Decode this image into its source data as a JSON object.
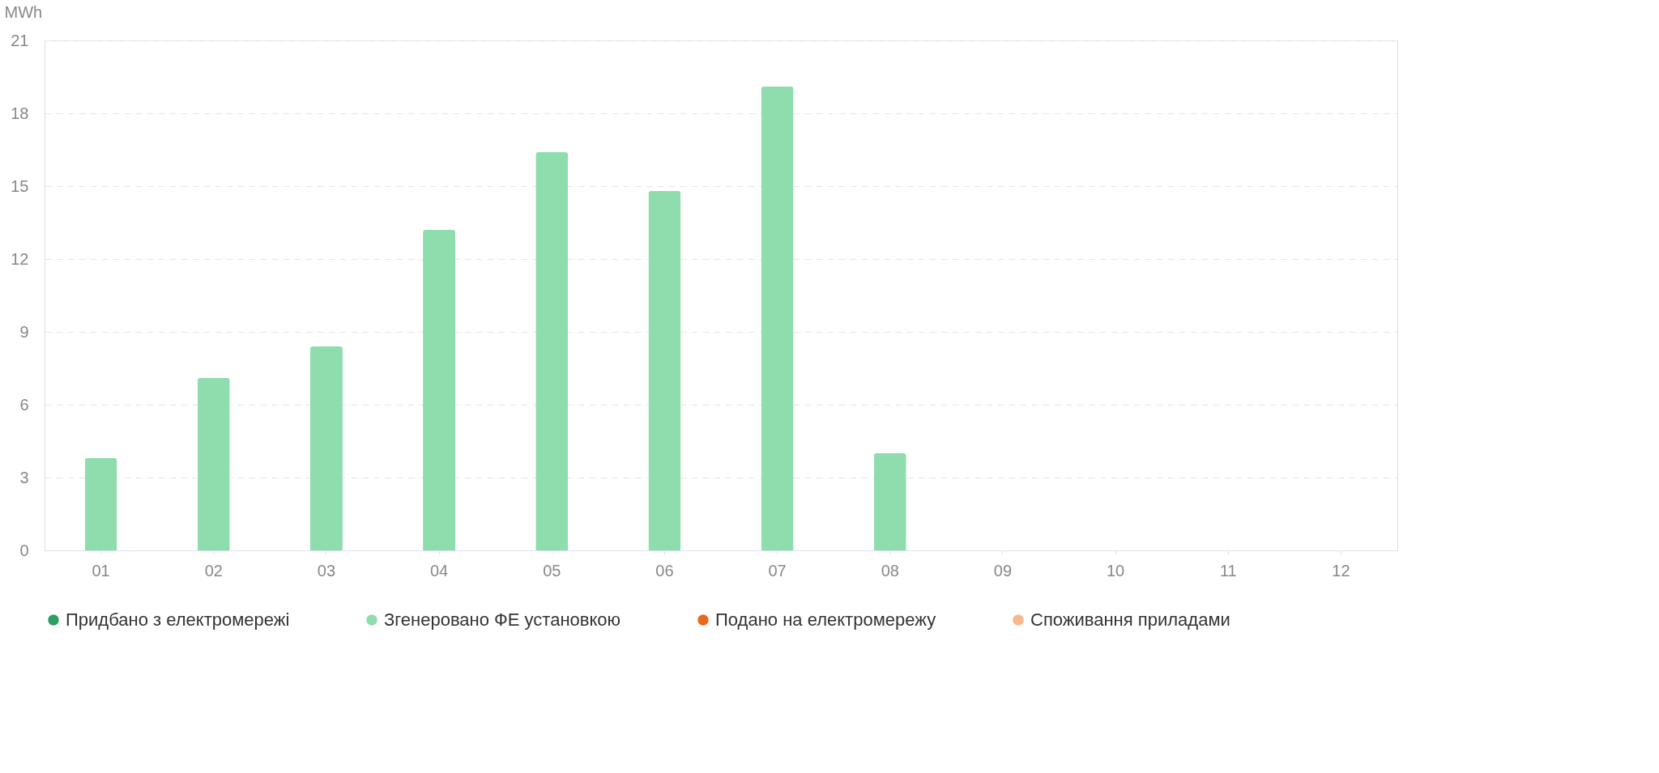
{
  "chart_data": {
    "type": "bar",
    "ylabel": "MWh",
    "categories": [
      "01",
      "02",
      "03",
      "04",
      "05",
      "06",
      "07",
      "08",
      "09",
      "10",
      "11",
      "12"
    ],
    "series": [
      {
        "name": "Придбано з електромережі",
        "color": "#2e9e62",
        "values": [
          null,
          null,
          null,
          null,
          null,
          null,
          null,
          null,
          null,
          null,
          null,
          null
        ]
      },
      {
        "name": "Згенеровано ФЕ установкою",
        "color": "#8fdcad",
        "values": [
          3.8,
          7.1,
          8.4,
          13.2,
          16.4,
          14.8,
          19.1,
          4.0,
          null,
          null,
          null,
          null
        ]
      },
      {
        "name": "Подано на електромережу",
        "color": "#e8691e",
        "values": [
          null,
          null,
          null,
          null,
          null,
          null,
          null,
          null,
          null,
          null,
          null,
          null
        ]
      },
      {
        "name": "Споживання приладами",
        "color": "#f5b98c",
        "values": [
          null,
          null,
          null,
          null,
          null,
          null,
          null,
          null,
          null,
          null,
          null,
          null
        ]
      }
    ],
    "ylim": [
      0,
      21
    ],
    "yticks": [
      0,
      3,
      6,
      9,
      12,
      15,
      18,
      21
    ],
    "grid": "y",
    "legend": "bottom"
  }
}
